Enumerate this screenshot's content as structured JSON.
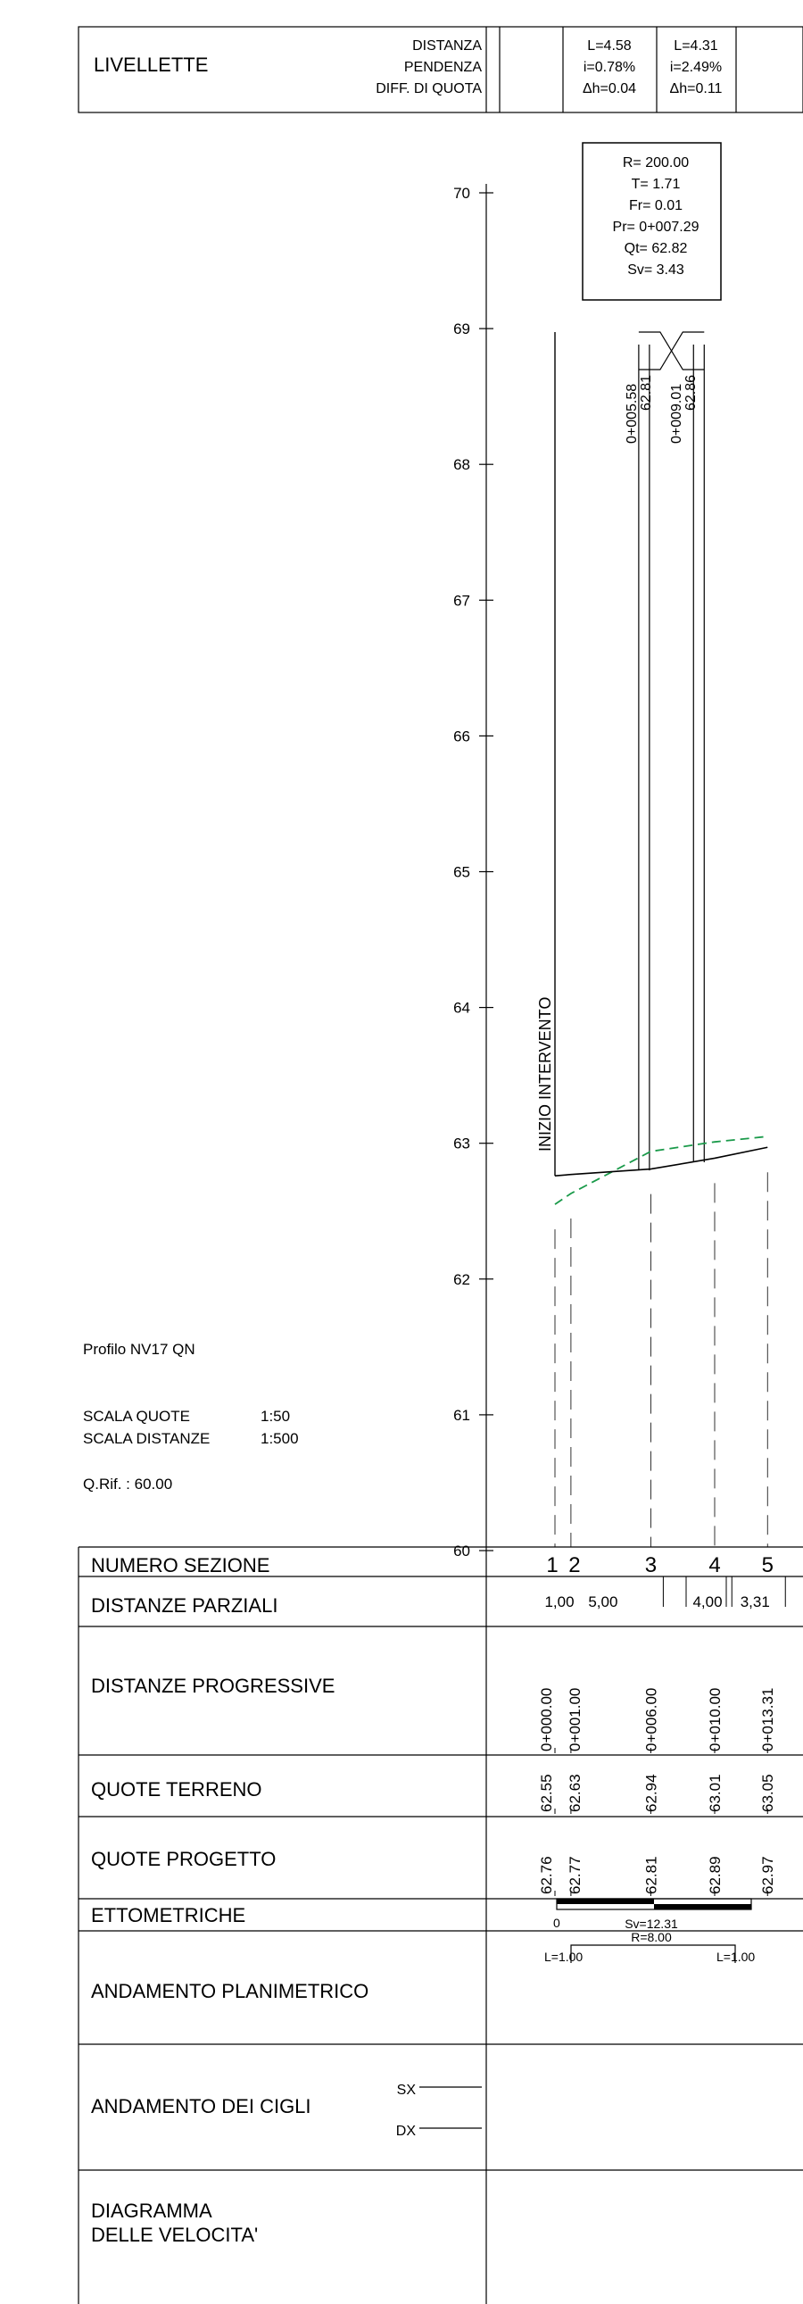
{
  "livellette": {
    "title": "LIVELLETTE",
    "labels": [
      "DISTANZA",
      "PENDENZA",
      "DIFF. DI QUOTA"
    ],
    "segments": [
      {
        "L": "L=4.58",
        "i": "i=0.78%",
        "dh": "Δh=0.04"
      },
      {
        "L": "L=4.31",
        "i": "i=2.49%",
        "dh": "Δh=0.11"
      }
    ]
  },
  "curve_box": [
    "R= 200.00",
    "T= 1.71",
    "Fr= 0.01",
    "Pr= 0+007.29",
    "Qt= 62.82",
    "Sv= 3.43"
  ],
  "vertices": [
    {
      "station": "0+005.58",
      "elev": "62.81"
    },
    {
      "station": "0+009.01",
      "elev": "62.86"
    }
  ],
  "inizio_label": "INIZIO INTERVENTO",
  "chart_data": {
    "type": "line",
    "y_axis": {
      "ticks": [
        "70",
        "69",
        "68",
        "67",
        "66",
        "65",
        "64",
        "63",
        "62",
        "61",
        "60"
      ],
      "range": [
        60,
        70
      ]
    },
    "x_range": [
      0,
      13.31
    ],
    "series": [
      {
        "key": "terreno",
        "style": "dashed-green",
        "points": [
          [
            0,
            62.55
          ],
          [
            1,
            62.63
          ],
          [
            6,
            62.94
          ],
          [
            10,
            63.01
          ],
          [
            13.31,
            63.05
          ]
        ]
      },
      {
        "key": "progetto",
        "style": "solid-black",
        "points": [
          [
            0,
            62.76
          ],
          [
            1,
            62.77
          ],
          [
            6,
            62.81
          ],
          [
            10,
            62.89
          ],
          [
            13.31,
            62.97
          ]
        ]
      }
    ],
    "sections": [
      {
        "num": "1",
        "x": 0
      },
      {
        "num": "2",
        "x": 1
      },
      {
        "num": "3",
        "x": 6
      },
      {
        "num": "4",
        "x": 10
      },
      {
        "num": "5",
        "x": 13.31
      }
    ]
  },
  "info": {
    "profile": "Profilo NV17 QN",
    "scala_quote_label": "SCALA QUOTE",
    "scala_quote": "1:50",
    "scala_distanze_label": "SCALA DISTANZE",
    "scala_distanze": "1:500",
    "qrif": "Q.Rif. : 60.00"
  },
  "table": {
    "rows": {
      "numero_sezione": "NUMERO SEZIONE",
      "distanze_parziali": "DISTANZE PARZIALI",
      "distanze_progressive": "DISTANZE PROGRESSIVE",
      "quote_terreno": "QUOTE TERRENO",
      "quote_progetto": "QUOTE PROGETTO",
      "ettometriche": "ETTOMETRICHE",
      "andamento_planimetrico": "ANDAMENTO PLANIMETRICO",
      "andamento_cigli": "ANDAMENTO DEI CIGLI",
      "diagramma_1": "DIAGRAMMA",
      "diagramma_2": "DELLE VELOCITA'"
    },
    "section_numbers": [
      "1",
      "2",
      "3",
      "4",
      "5"
    ],
    "parziali": [
      "1,00",
      "5,00",
      "4,00",
      "3,31"
    ],
    "progressive": [
      "0+000.00",
      "0+001.00",
      "0+006.00",
      "0+010.00",
      "0+013.31"
    ],
    "terreno": [
      "62.55",
      "62.63",
      "62.94",
      "63.01",
      "63.05"
    ],
    "progetto": [
      "62.76",
      "62.77",
      "62.81",
      "62.89",
      "62.97"
    ],
    "ettometriche_zero": "0",
    "sv_label": "Sv=12.31",
    "planimetrico": {
      "R": "R=8.00",
      "L_left": "L=1.00",
      "L_right": "L=1.00"
    },
    "sx": "SX",
    "dx": "DX"
  }
}
